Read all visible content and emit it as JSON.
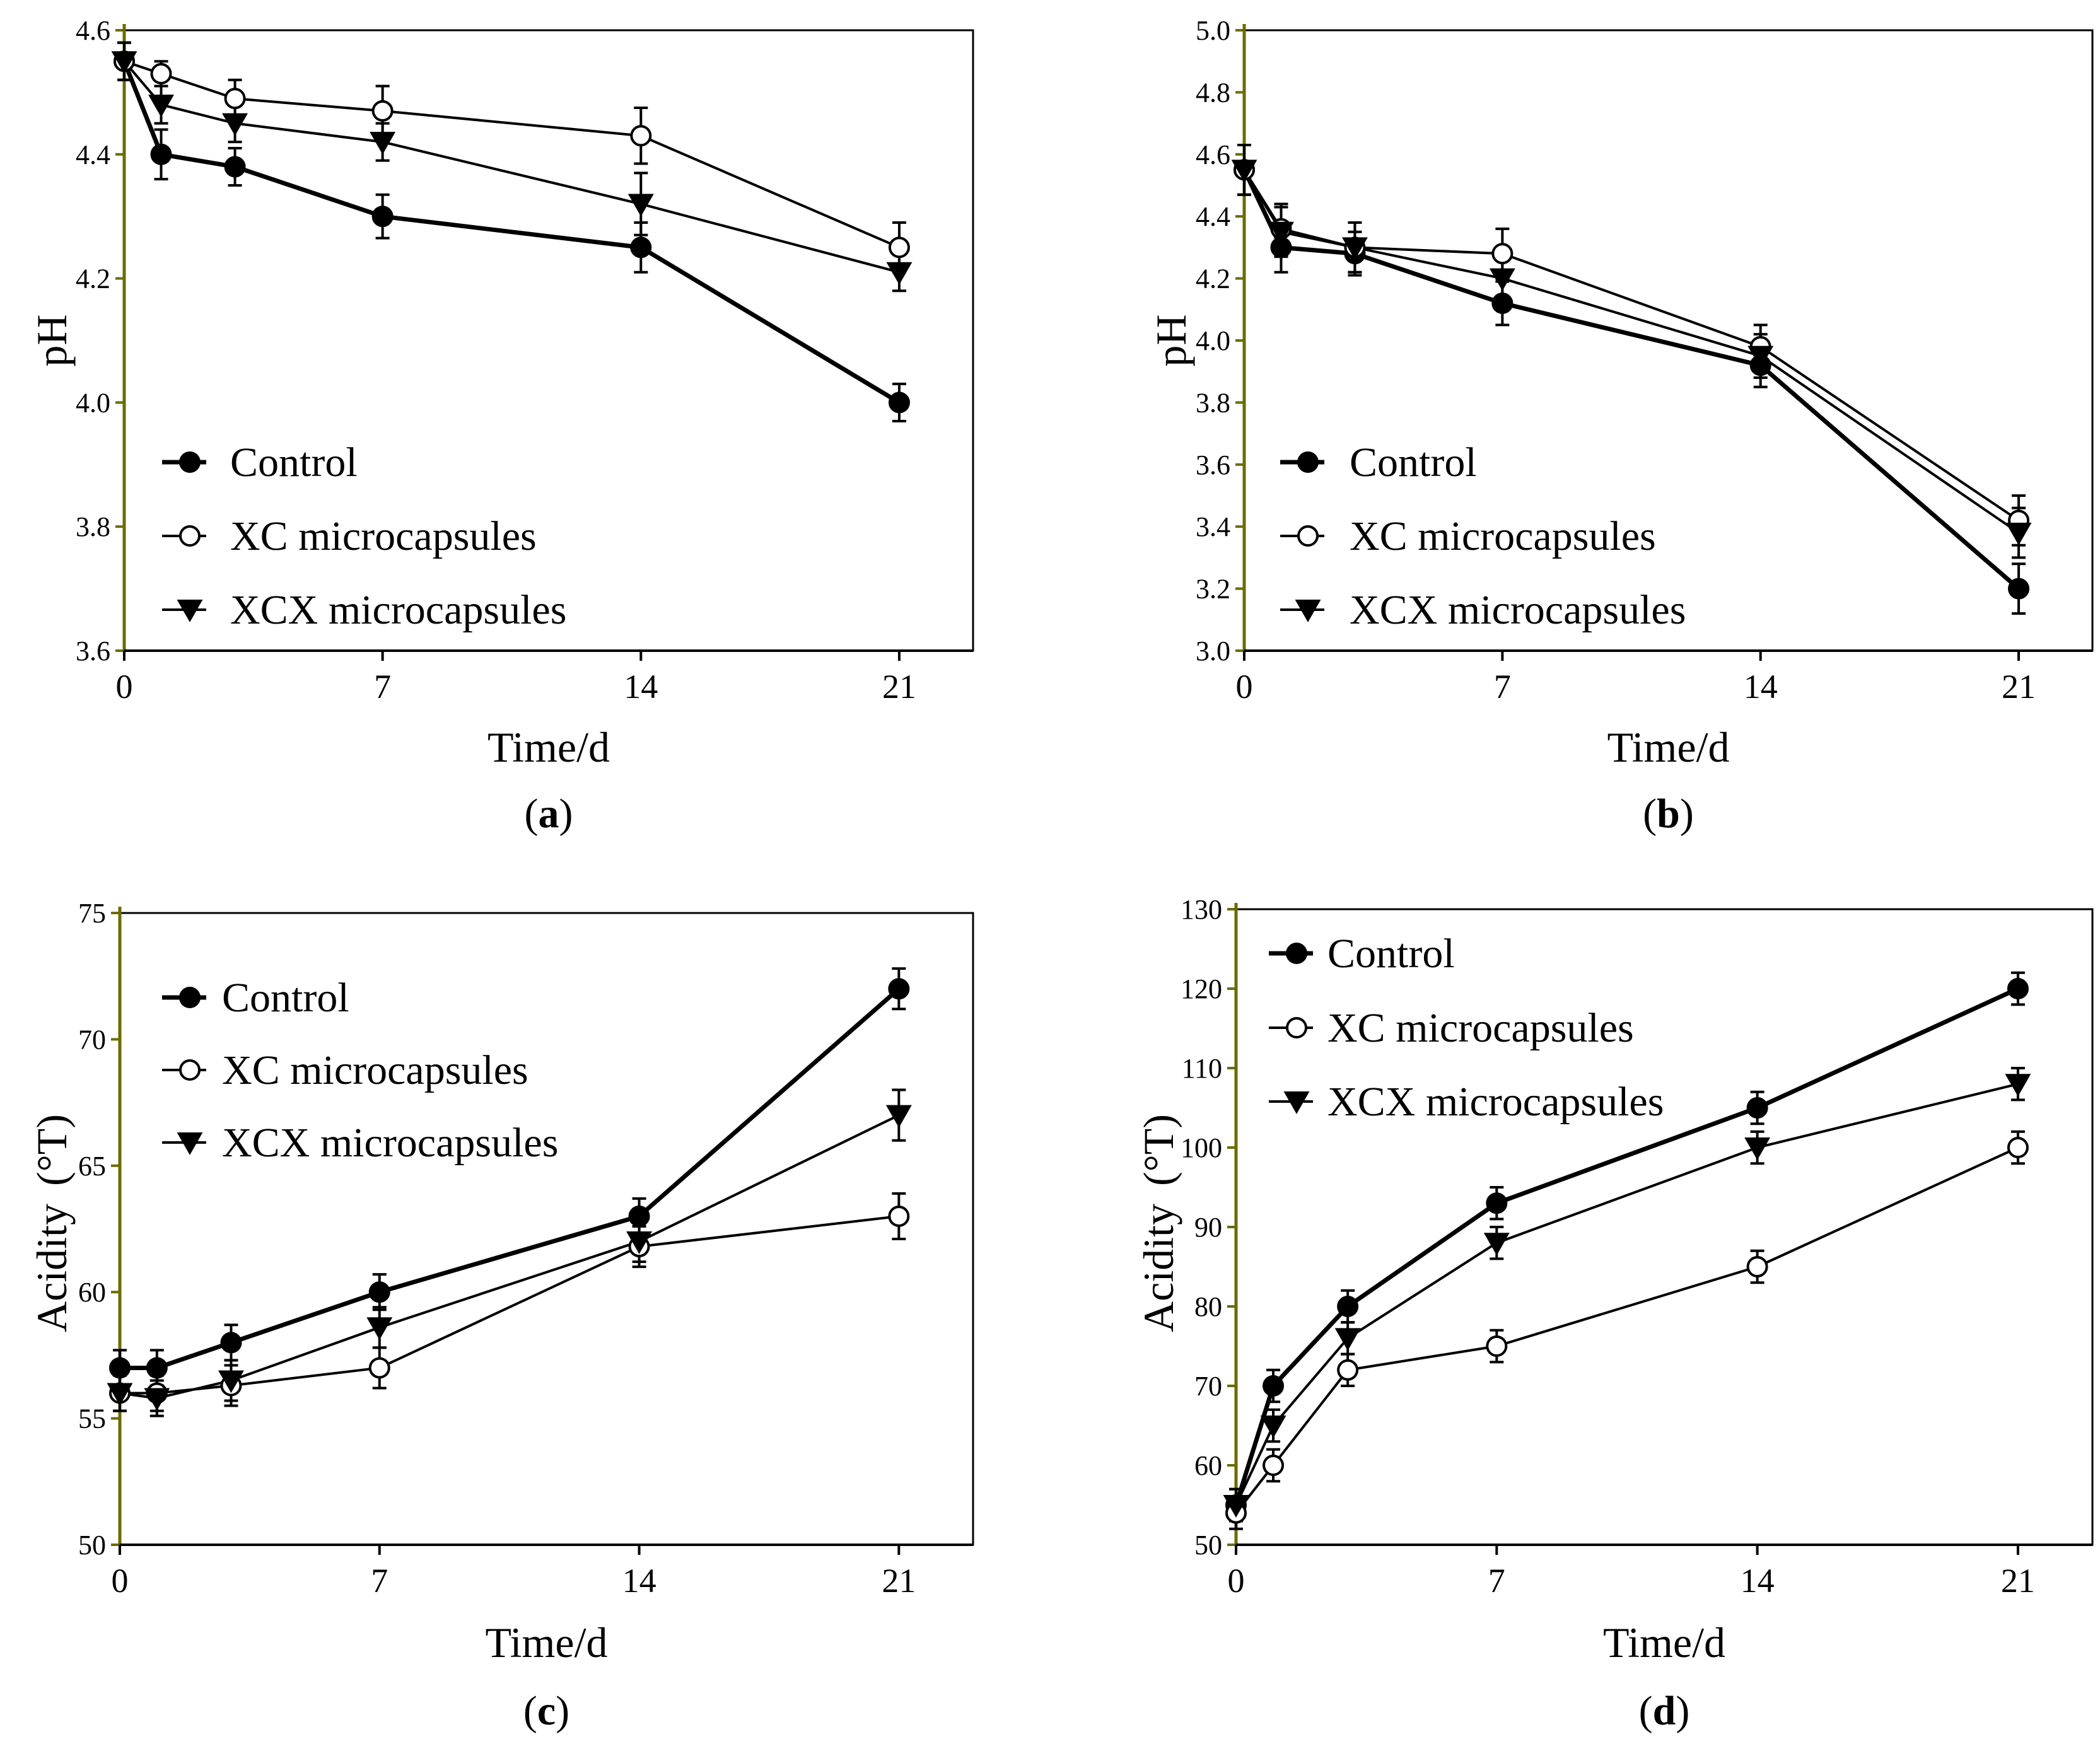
{
  "chart_data": [
    {
      "type": "line",
      "panel_label": {
        "open": "(",
        "letter": "a",
        "close": ")"
      },
      "xlabel": "Time/d",
      "ylabel": "pH",
      "xlim": [
        0,
        23
      ],
      "ylim": [
        3.6,
        4.6
      ],
      "xticks": [
        0,
        7,
        14,
        21
      ],
      "xtick_labels": [
        "0",
        "7",
        "14",
        "21"
      ],
      "yticks": [
        3.6,
        3.8,
        4.0,
        4.2,
        4.4,
        4.6
      ],
      "ytick_labels": [
        "3.6",
        "3.8",
        "4.0",
        "4.2",
        "4.4",
        "4.6"
      ],
      "legend_position": "bottom-left",
      "series": [
        {
          "name": "Control",
          "marker": "filled-circle",
          "x": [
            0,
            1,
            3,
            7,
            14,
            21
          ],
          "y": [
            4.55,
            4.4,
            4.38,
            4.3,
            4.25,
            4.0
          ],
          "err": [
            0.03,
            0.04,
            0.03,
            0.035,
            0.04,
            0.03
          ]
        },
        {
          "name": "XC microcapsules",
          "marker": "open-circle",
          "x": [
            0,
            1,
            3,
            7,
            14,
            21
          ],
          "y": [
            4.55,
            4.53,
            4.49,
            4.47,
            4.43,
            4.25
          ],
          "err": [
            0.03,
            0.02,
            0.03,
            0.04,
            0.045,
            0.04
          ]
        },
        {
          "name": "XCX microcapsules",
          "marker": "filled-triangle",
          "x": [
            0,
            1,
            3,
            7,
            14,
            21
          ],
          "y": [
            4.55,
            4.48,
            4.45,
            4.42,
            4.32,
            4.21
          ],
          "err": [
            0.03,
            0.03,
            0.03,
            0.03,
            0.05,
            0.03
          ]
        }
      ]
    },
    {
      "type": "line",
      "panel_label": {
        "open": "(",
        "letter": "b",
        "close": ")"
      },
      "xlabel": "Time/d",
      "ylabel": "pH",
      "xlim": [
        0,
        23
      ],
      "ylim": [
        3.0,
        5.0
      ],
      "xticks": [
        0,
        7,
        14,
        21
      ],
      "xtick_labels": [
        "0",
        "7",
        "14",
        "21"
      ],
      "yticks": [
        3.0,
        3.2,
        3.4,
        3.6,
        3.8,
        4.0,
        4.2,
        4.4,
        4.6,
        4.8,
        5.0
      ],
      "ytick_labels": [
        "3.0",
        "3.2",
        "3.4",
        "3.6",
        "3.8",
        "4.0",
        "4.2",
        "4.4",
        "4.6",
        "4.8",
        "5.0"
      ],
      "legend_position": "bottom-left",
      "series": [
        {
          "name": "Control",
          "marker": "filled-circle",
          "x": [
            0,
            1,
            3,
            7,
            14,
            21
          ],
          "y": [
            4.55,
            4.3,
            4.28,
            4.12,
            3.92,
            3.2
          ],
          "err": [
            0.08,
            0.08,
            0.07,
            0.07,
            0.07,
            0.08
          ]
        },
        {
          "name": "XC microcapsules",
          "marker": "open-circle",
          "x": [
            0,
            1,
            3,
            7,
            14,
            21
          ],
          "y": [
            4.55,
            4.36,
            4.3,
            4.28,
            3.98,
            3.42
          ],
          "err": [
            0.08,
            0.08,
            0.08,
            0.08,
            0.07,
            0.08
          ]
        },
        {
          "name": "XCX microcapsules",
          "marker": "filled-triangle",
          "x": [
            0,
            1,
            3,
            7,
            14,
            21
          ],
          "y": [
            4.55,
            4.35,
            4.3,
            4.2,
            3.95,
            3.38
          ],
          "err": [
            0.08,
            0.08,
            0.08,
            0.08,
            0.07,
            0.08
          ]
        }
      ]
    },
    {
      "type": "line",
      "panel_label": {
        "open": "(",
        "letter": "c",
        "close": ")"
      },
      "xlabel": "Time/d",
      "ylabel": "Acidity",
      "ylabel_unit": "(°T)",
      "xlim": [
        0,
        23
      ],
      "ylim": [
        50,
        75
      ],
      "xticks": [
        0,
        7,
        14,
        21
      ],
      "xtick_labels": [
        "0",
        "7",
        "14",
        "21"
      ],
      "yticks": [
        50,
        55,
        60,
        65,
        70,
        75
      ],
      "ytick_labels": [
        "50",
        "55",
        "60",
        "65",
        "70",
        "75"
      ],
      "legend_position": "top-left",
      "series": [
        {
          "name": "Control",
          "marker": "filled-circle",
          "x": [
            0,
            1,
            3,
            7,
            14,
            21
          ],
          "y": [
            57,
            57,
            58,
            60,
            63,
            72
          ],
          "err": [
            0.7,
            0.7,
            0.7,
            0.7,
            0.7,
            0.8
          ]
        },
        {
          "name": "XC microcapsules",
          "marker": "open-circle",
          "x": [
            0,
            1,
            3,
            7,
            14,
            21
          ],
          "y": [
            56,
            56,
            56.3,
            57,
            61.8,
            63
          ],
          "err": [
            0.7,
            0.7,
            0.8,
            0.8,
            0.8,
            0.9
          ]
        },
        {
          "name": "XCX microcapsules",
          "marker": "filled-triangle",
          "x": [
            0,
            1,
            3,
            7,
            14,
            21
          ],
          "y": [
            56,
            55.8,
            56.5,
            58.6,
            62,
            67
          ],
          "err": [
            0.7,
            0.7,
            0.8,
            0.8,
            0.8,
            1.0
          ]
        }
      ]
    },
    {
      "type": "line",
      "panel_label": {
        "open": "(",
        "letter": "d",
        "close": ")"
      },
      "xlabel": "Time/d",
      "ylabel": "Acidity",
      "ylabel_unit": "(°T)",
      "xlim": [
        0,
        23
      ],
      "ylim": [
        50,
        130
      ],
      "xticks": [
        0,
        7,
        14,
        21
      ],
      "xtick_labels": [
        "0",
        "7",
        "14",
        "21"
      ],
      "yticks": [
        50,
        60,
        70,
        80,
        90,
        100,
        110,
        120,
        130
      ],
      "ytick_labels": [
        "50",
        "60",
        "70",
        "80",
        "90",
        "100",
        "110",
        "120",
        "130"
      ],
      "legend_position": "top-left",
      "series": [
        {
          "name": "Control",
          "marker": "filled-circle",
          "x": [
            0,
            1,
            3,
            7,
            14,
            21
          ],
          "y": [
            55,
            70,
            80,
            93,
            105,
            120
          ],
          "err": [
            2,
            2,
            2,
            2,
            2,
            2
          ]
        },
        {
          "name": "XC microcapsules",
          "marker": "open-circle",
          "x": [
            0,
            1,
            3,
            7,
            14,
            21
          ],
          "y": [
            54,
            60,
            72,
            75,
            85,
            100
          ],
          "err": [
            2,
            2,
            2,
            2,
            2,
            2
          ]
        },
        {
          "name": "XCX microcapsules",
          "marker": "filled-triangle",
          "x": [
            0,
            1,
            3,
            7,
            14,
            21
          ],
          "y": [
            55,
            65,
            76,
            88,
            100,
            108
          ],
          "err": [
            2,
            2,
            2,
            2,
            2,
            2
          ]
        }
      ]
    }
  ]
}
